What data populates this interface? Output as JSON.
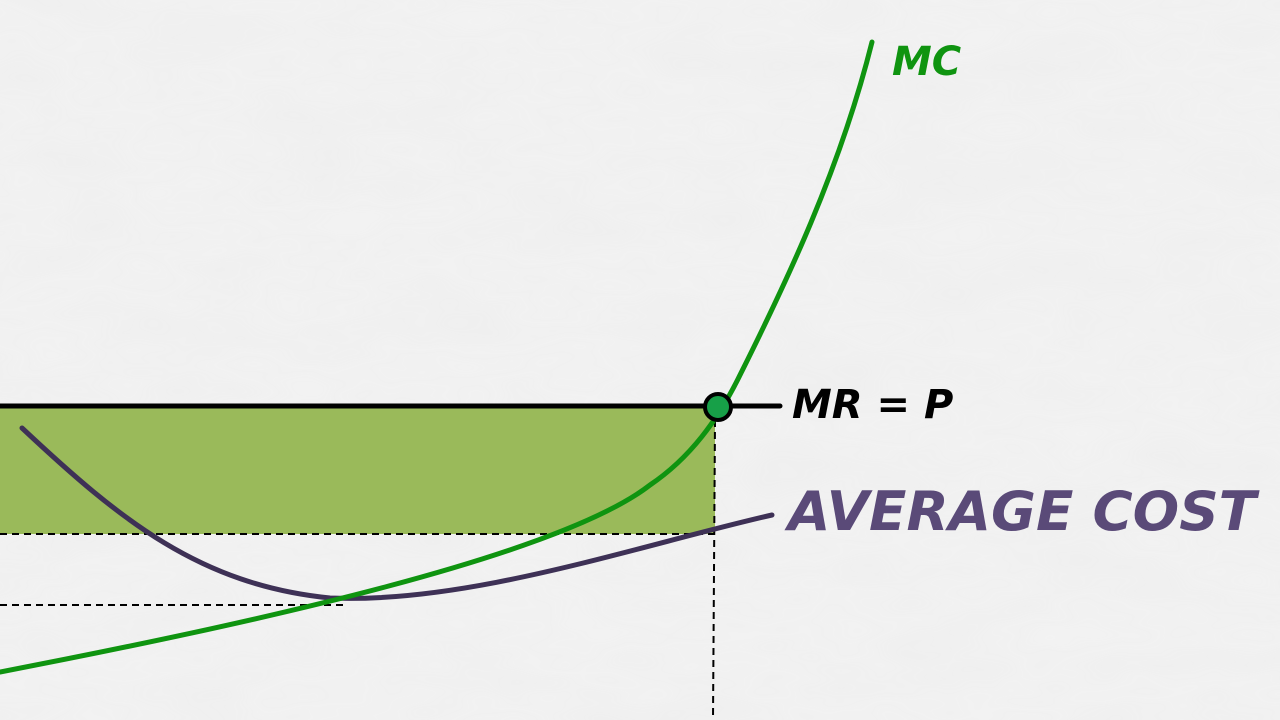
{
  "labels": {
    "mc": "MC",
    "mr_p": "MR = P",
    "average_cost": "AVERAGE COST"
  },
  "colors": {
    "background": "#f2f2f2",
    "mc_curve": "#0f9410",
    "average_cost_curve": "#3e3156",
    "average_cost_label": "#5a4a78",
    "mr_line": "#000000",
    "profit_area": "#9aba5a",
    "intersection_point": "#17a048",
    "dashed_guides": "#000000"
  }
}
